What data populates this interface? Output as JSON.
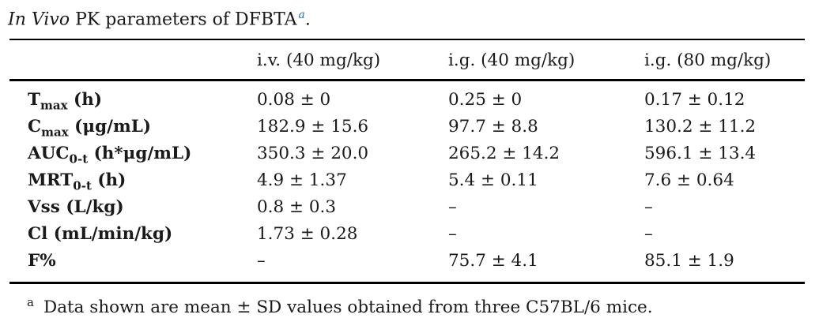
{
  "title": {
    "italic": "In Vivo",
    "rest": " PK parameters of DFBTA",
    "marker": "a",
    "period": "."
  },
  "table": {
    "columns": [
      "",
      "i.v. (40 mg/kg)",
      "i.g. (40 mg/kg)",
      "i.g. (80 mg/kg)"
    ],
    "rows": [
      {
        "label": {
          "base": "T",
          "sub": "max",
          "rest": " (h)"
        },
        "values": [
          "0.08 ± 0",
          "0.25 ± 0",
          "0.17 ± 0.12"
        ]
      },
      {
        "label": {
          "base": "C",
          "sub": "max",
          "rest": " (μg/mL)"
        },
        "values": [
          "182.9 ± 15.6",
          "97.7 ± 8.8",
          "130.2 ± 11.2"
        ]
      },
      {
        "label": {
          "base": "AUC",
          "sub": "0-t",
          "rest": " (h*μg/mL)"
        },
        "values": [
          "350.3 ± 20.0",
          "265.2 ± 14.2",
          "596.1 ± 13.4"
        ]
      },
      {
        "label": {
          "base": "MRT",
          "sub": "0-t",
          "rest": " (h)"
        },
        "values": [
          "4.9 ± 1.37",
          "5.4 ± 0.11",
          "7.6 ± 0.64"
        ]
      },
      {
        "label": {
          "base": "Vss",
          "sub": "",
          "rest": " (L/kg)"
        },
        "values": [
          "0.8 ± 0.3",
          "–",
          "–"
        ]
      },
      {
        "label": {
          "base": "Cl",
          "sub": "",
          "rest": " (mL/min/kg)"
        },
        "values": [
          "1.73 ± 0.28",
          "–",
          "–"
        ]
      },
      {
        "label": {
          "base": "F%",
          "sub": "",
          "rest": ""
        },
        "values": [
          "–",
          "75.7 ± 4.1",
          "85.1 ± 1.9"
        ]
      }
    ]
  },
  "footnote": {
    "marker": "a",
    "text": "Data shown are mean ± SD values obtained from three C57BL/6 mice."
  },
  "colors": {
    "caption_marker_blue": "#2e6fb3",
    "text": "#1a1a1a",
    "rule": "#000000"
  }
}
